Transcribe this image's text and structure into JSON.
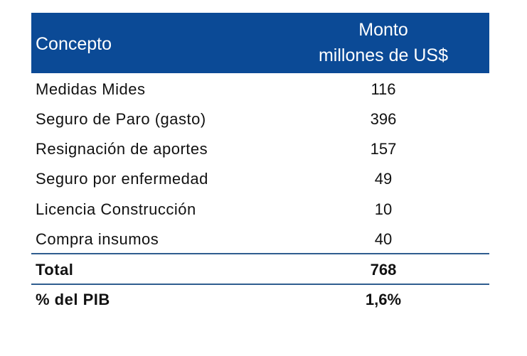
{
  "table": {
    "headers": {
      "concepto": "Concepto",
      "monto_line1": "Monto",
      "monto_line2": "millones de US$"
    },
    "rows": [
      {
        "concepto": "Medidas Mides",
        "monto": "116"
      },
      {
        "concepto": "Seguro de Paro (gasto)",
        "monto": "396"
      },
      {
        "concepto": "Resignación de aportes",
        "monto": "157"
      },
      {
        "concepto": "Seguro por enfermedad",
        "monto": "49"
      },
      {
        "concepto": "Licencia Construcción",
        "monto": "10"
      },
      {
        "concepto": "Compra insumos",
        "monto": "40"
      }
    ],
    "total": {
      "concepto": "Total",
      "monto": "768"
    },
    "pib": {
      "concepto": "% del PIB",
      "monto": "1,6%"
    }
  },
  "colors": {
    "header_bg": "#0b4a96",
    "rule": "#2f5d8f"
  }
}
